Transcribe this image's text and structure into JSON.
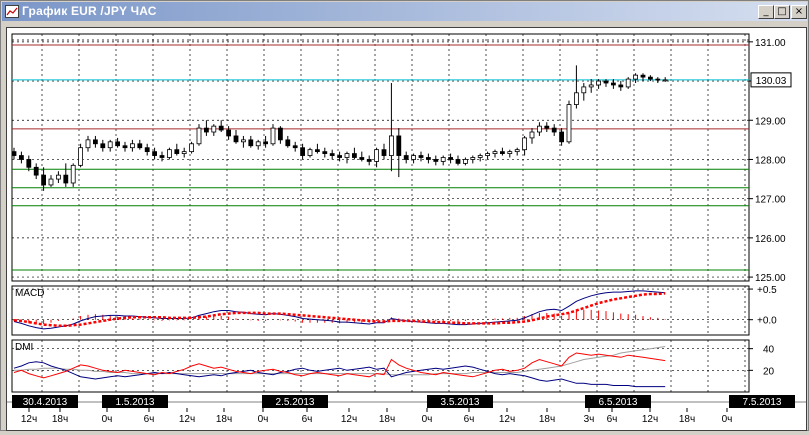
{
  "window": {
    "title": "График EUR /JPY  ЧАС",
    "buttons": {
      "minimize": "_",
      "maximize": "□",
      "close": "×"
    }
  },
  "colors": {
    "price_axis_bg": "#ffffff",
    "candle_up": "#ffffff",
    "candle_down": "#000000",
    "support_line": "#008000",
    "resistance_line": "#a52a2a",
    "current_price_line": "#00bcd4",
    "macd_line": "#000080",
    "macd_signal": "#ff0000",
    "dmi_plus": "#ff0000",
    "dmi_minus": "#000080",
    "adx": "#a0a0a0"
  },
  "price_panel": {
    "y_ticks": [
      "131.00",
      "130.00",
      "129.00",
      "128.00",
      "127.00",
      "126.00",
      "125.00"
    ],
    "current_price": "130.03"
  },
  "macd_panel": {
    "label": "MACD",
    "y_ticks": [
      "+0.5",
      "+0.0"
    ]
  },
  "dmi_panel": {
    "label": "DMI",
    "y_ticks": [
      "40",
      "20"
    ]
  },
  "time_axis": {
    "dates": [
      "30.4.2013",
      "1.5.2013",
      "2.5.2013",
      "3.5.2013",
      "6.5.2013",
      "7.5.2013"
    ],
    "hours": [
      "12ч",
      "18ч",
      "0ч",
      "6ч",
      "12ч",
      "18ч",
      "0ч",
      "6ч",
      "12ч",
      "18ч",
      "0ч",
      "6ч",
      "12ч",
      "18ч",
      "3ч",
      "6ч",
      "12ч",
      "18ч",
      "0ч"
    ]
  },
  "chart_data": {
    "type": "candlestick",
    "symbol": "EUR /JPY",
    "timeframe": "ЧАС",
    "ylim": [
      124.9,
      131.2
    ],
    "horizontal_lines": {
      "resistance": [
        130.92,
        128.78
      ],
      "support": [
        127.75,
        127.28,
        126.82,
        125.18
      ],
      "current": 130.03
    },
    "candles": [
      [
        128.2,
        128.3,
        128.0,
        128.1
      ],
      [
        128.1,
        128.2,
        127.9,
        128.0
      ],
      [
        128.0,
        128.1,
        127.7,
        127.8
      ],
      [
        127.8,
        127.9,
        127.5,
        127.6
      ],
      [
        127.6,
        127.8,
        127.2,
        127.35
      ],
      [
        127.35,
        127.6,
        127.3,
        127.5
      ],
      [
        127.5,
        127.7,
        127.4,
        127.6
      ],
      [
        127.6,
        127.9,
        127.3,
        127.4
      ],
      [
        127.4,
        127.9,
        127.3,
        127.85
      ],
      [
        127.85,
        128.4,
        127.8,
        128.3
      ],
      [
        128.3,
        128.6,
        128.2,
        128.5
      ],
      [
        128.5,
        128.6,
        128.3,
        128.4
      ],
      [
        128.4,
        128.5,
        128.2,
        128.3
      ],
      [
        128.3,
        128.5,
        128.2,
        128.45
      ],
      [
        128.45,
        128.55,
        128.3,
        128.35
      ],
      [
        128.35,
        128.45,
        128.2,
        128.3
      ],
      [
        128.3,
        128.5,
        128.2,
        128.4
      ],
      [
        128.4,
        128.5,
        128.25,
        128.3
      ],
      [
        128.3,
        128.4,
        128.1,
        128.2
      ],
      [
        128.2,
        128.3,
        128.0,
        128.1
      ],
      [
        128.1,
        128.2,
        127.95,
        128.05
      ],
      [
        128.05,
        128.3,
        128.0,
        128.25
      ],
      [
        128.25,
        128.4,
        128.1,
        128.15
      ],
      [
        128.15,
        128.3,
        128.05,
        128.2
      ],
      [
        128.2,
        128.45,
        128.15,
        128.4
      ],
      [
        128.4,
        128.9,
        128.35,
        128.8
      ],
      [
        128.8,
        129.0,
        128.6,
        128.7
      ],
      [
        128.7,
        128.9,
        128.6,
        128.85
      ],
      [
        128.85,
        129.0,
        128.7,
        128.75
      ],
      [
        128.75,
        128.85,
        128.5,
        128.6
      ],
      [
        128.6,
        128.75,
        128.4,
        128.45
      ],
      [
        128.45,
        128.6,
        128.3,
        128.5
      ],
      [
        128.5,
        128.6,
        128.3,
        128.35
      ],
      [
        128.35,
        128.5,
        128.25,
        128.45
      ],
      [
        128.45,
        128.6,
        128.3,
        128.4
      ],
      [
        128.4,
        128.9,
        128.35,
        128.8
      ],
      [
        128.8,
        128.85,
        128.4,
        128.5
      ],
      [
        128.5,
        128.6,
        128.3,
        128.35
      ],
      [
        128.35,
        128.45,
        128.2,
        128.3
      ],
      [
        128.3,
        128.4,
        128.0,
        128.1
      ],
      [
        128.1,
        128.3,
        128.05,
        128.25
      ],
      [
        128.25,
        128.4,
        128.15,
        128.2
      ],
      [
        128.2,
        128.3,
        128.05,
        128.15
      ],
      [
        128.15,
        128.25,
        128.0,
        128.1
      ],
      [
        128.1,
        128.2,
        127.95,
        128.05
      ],
      [
        128.05,
        128.2,
        127.9,
        128.15
      ],
      [
        128.15,
        128.3,
        128.0,
        128.05
      ],
      [
        128.05,
        128.2,
        127.95,
        128.0
      ],
      [
        128.0,
        128.1,
        127.85,
        127.95
      ],
      [
        127.95,
        128.3,
        127.8,
        128.25
      ],
      [
        128.25,
        128.4,
        128.0,
        128.1
      ],
      [
        128.1,
        129.95,
        127.7,
        128.6
      ],
      [
        128.6,
        128.8,
        127.55,
        128.1
      ],
      [
        128.1,
        128.2,
        127.9,
        128.0
      ],
      [
        128.0,
        128.15,
        127.9,
        128.1
      ],
      [
        128.1,
        128.2,
        127.95,
        128.05
      ],
      [
        128.05,
        128.15,
        127.9,
        128.0
      ],
      [
        128.0,
        128.1,
        127.85,
        127.95
      ],
      [
        127.95,
        128.1,
        127.85,
        128.05
      ],
      [
        128.05,
        128.15,
        127.9,
        128.0
      ],
      [
        128.0,
        128.1,
        127.85,
        127.9
      ],
      [
        127.9,
        128.05,
        127.85,
        128.0
      ],
      [
        128.0,
        128.1,
        127.9,
        128.05
      ],
      [
        128.05,
        128.15,
        127.95,
        128.1
      ],
      [
        128.1,
        128.2,
        128.0,
        128.15
      ],
      [
        128.15,
        128.25,
        128.05,
        128.2
      ],
      [
        128.2,
        128.3,
        128.1,
        128.15
      ],
      [
        128.15,
        128.25,
        128.05,
        128.2
      ],
      [
        128.2,
        128.3,
        128.1,
        128.25
      ],
      [
        128.25,
        128.6,
        128.1,
        128.55
      ],
      [
        128.55,
        128.8,
        128.4,
        128.7
      ],
      [
        128.7,
        128.95,
        128.6,
        128.85
      ],
      [
        128.85,
        128.95,
        128.7,
        128.8
      ],
      [
        128.8,
        128.9,
        128.6,
        128.7
      ],
      [
        128.7,
        128.8,
        128.35,
        128.45
      ],
      [
        128.45,
        129.5,
        128.4,
        129.4
      ],
      [
        129.4,
        130.4,
        129.3,
        129.7
      ],
      [
        129.7,
        129.95,
        129.5,
        129.85
      ],
      [
        129.85,
        130.05,
        129.7,
        129.9
      ],
      [
        129.9,
        130.05,
        129.8,
        130.0
      ],
      [
        130.0,
        130.05,
        129.85,
        129.95
      ],
      [
        129.95,
        130.05,
        129.8,
        129.9
      ],
      [
        129.9,
        130.0,
        129.75,
        129.85
      ],
      [
        129.85,
        130.1,
        129.8,
        130.05
      ],
      [
        130.05,
        130.2,
        129.95,
        130.15
      ],
      [
        130.15,
        130.2,
        130.0,
        130.1
      ],
      [
        130.1,
        130.15,
        130.0,
        130.05
      ],
      [
        130.05,
        130.1,
        129.95,
        130.03
      ],
      [
        130.03,
        130.1,
        129.98,
        130.03
      ]
    ],
    "macd": [
      -0.03,
      -0.06,
      -0.1,
      -0.13,
      -0.15,
      -0.14,
      -0.12,
      -0.1,
      -0.07,
      -0.02,
      0.02,
      0.05,
      0.06,
      0.07,
      0.07,
      0.06,
      0.06,
      0.05,
      0.04,
      0.03,
      0.02,
      0.02,
      0.02,
      0.02,
      0.03,
      0.07,
      0.1,
      0.13,
      0.15,
      0.15,
      0.13,
      0.12,
      0.1,
      0.09,
      0.08,
      0.1,
      0.09,
      0.07,
      0.05,
      0.02,
      0.01,
      0.0,
      -0.01,
      -0.02,
      -0.04,
      -0.04,
      -0.05,
      -0.06,
      -0.07,
      -0.05,
      -0.05,
      0.02,
      0.0,
      -0.02,
      -0.03,
      -0.04,
      -0.05,
      -0.06,
      -0.06,
      -0.07,
      -0.08,
      -0.08,
      -0.07,
      -0.06,
      -0.05,
      -0.04,
      -0.03,
      -0.02,
      -0.01,
      0.03,
      0.08,
      0.13,
      0.16,
      0.17,
      0.15,
      0.22,
      0.3,
      0.35,
      0.39,
      0.42,
      0.44,
      0.45,
      0.45,
      0.46,
      0.47,
      0.47,
      0.46,
      0.45,
      0.44
    ],
    "macd_signal": [
      -0.01,
      -0.02,
      -0.04,
      -0.06,
      -0.08,
      -0.09,
      -0.1,
      -0.1,
      -0.09,
      -0.08,
      -0.06,
      -0.04,
      -0.02,
      0.0,
      0.02,
      0.03,
      0.04,
      0.04,
      0.04,
      0.04,
      0.04,
      0.03,
      0.03,
      0.03,
      0.03,
      0.04,
      0.05,
      0.07,
      0.09,
      0.1,
      0.11,
      0.11,
      0.11,
      0.11,
      0.1,
      0.1,
      0.1,
      0.09,
      0.08,
      0.07,
      0.06,
      0.05,
      0.04,
      0.03,
      0.02,
      0.01,
      0.0,
      -0.01,
      -0.02,
      -0.03,
      -0.03,
      -0.02,
      -0.02,
      -0.02,
      -0.02,
      -0.03,
      -0.03,
      -0.04,
      -0.04,
      -0.05,
      -0.05,
      -0.06,
      -0.06,
      -0.06,
      -0.06,
      -0.06,
      -0.05,
      -0.05,
      -0.04,
      -0.03,
      -0.01,
      0.02,
      0.05,
      0.07,
      0.09,
      0.11,
      0.15,
      0.19,
      0.23,
      0.27,
      0.3,
      0.33,
      0.35,
      0.37,
      0.39,
      0.41,
      0.42,
      0.42,
      0.43
    ],
    "dmi_plus": [
      18,
      20,
      17,
      15,
      13,
      15,
      17,
      19,
      22,
      25,
      24,
      22,
      20,
      19,
      18,
      20,
      19,
      18,
      17,
      16,
      18,
      17,
      19,
      21,
      24,
      26,
      24,
      22,
      23,
      21,
      19,
      18,
      17,
      19,
      20,
      21,
      19,
      18,
      16,
      15,
      17,
      18,
      17,
      16,
      15,
      17,
      16,
      15,
      14,
      17,
      16,
      30,
      25,
      22,
      20,
      18,
      17,
      16,
      18,
      17,
      16,
      15,
      14,
      16,
      18,
      20,
      21,
      19,
      20,
      22,
      27,
      30,
      28,
      26,
      24,
      32,
      36,
      35,
      34,
      35,
      34,
      33,
      32,
      34,
      33,
      32,
      31,
      30,
      29
    ],
    "dmi_minus": [
      22,
      24,
      27,
      28,
      27,
      24,
      22,
      20,
      17,
      14,
      13,
      12,
      13,
      14,
      15,
      14,
      15,
      16,
      17,
      18,
      17,
      18,
      17,
      16,
      15,
      14,
      15,
      16,
      15,
      17,
      18,
      19,
      20,
      18,
      17,
      16,
      18,
      19,
      21,
      22,
      20,
      19,
      20,
      21,
      22,
      20,
      21,
      22,
      23,
      21,
      22,
      14,
      16,
      18,
      19,
      20,
      21,
      22,
      21,
      22,
      23,
      24,
      23,
      21,
      19,
      17,
      16,
      17,
      16,
      15,
      13,
      11,
      10,
      11,
      12,
      10,
      8,
      8,
      7,
      7,
      7,
      6,
      6,
      6,
      5,
      5,
      5,
      5,
      5
    ],
    "adx": [
      20,
      20,
      21,
      21,
      22,
      22,
      22,
      21,
      21,
      20,
      20,
      19,
      19,
      18,
      18,
      18,
      17,
      17,
      17,
      17,
      17,
      17,
      17,
      17,
      17,
      17,
      17,
      17,
      17,
      17,
      17,
      17,
      17,
      17,
      17,
      17,
      17,
      17,
      17,
      17,
      17,
      17,
      17,
      17,
      17,
      17,
      17,
      17,
      17,
      17,
      17,
      16,
      16,
      16,
      16,
      16,
      16,
      17,
      17,
      17,
      17,
      17,
      18,
      18,
      18,
      18,
      18,
      18,
      18,
      19,
      20,
      21,
      22,
      23,
      24,
      26,
      28,
      30,
      31,
      32,
      33,
      34,
      36,
      37,
      38,
      39,
      40,
      41,
      42
    ]
  }
}
